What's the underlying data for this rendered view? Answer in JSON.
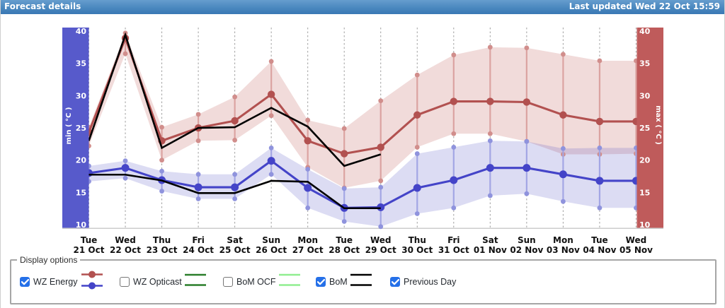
{
  "titlebar": {
    "title": "Forecast details",
    "last_updated": "Last updated Wed 22 Oct 15:59"
  },
  "display_options": {
    "legend_title": "Display options",
    "items": [
      {
        "label": "WZ Energy",
        "checked": true,
        "icon": "red-blue-dot-lines",
        "x": 27,
        "icon_colors": [
          "#b25150",
          "#4444c8"
        ]
      },
      {
        "label": "WZ Opticast",
        "checked": false,
        "icon": "double-lines",
        "x": 168,
        "icon_colors": [
          "#2a7e2a",
          "#2a7e2a"
        ]
      },
      {
        "label": "BoM OCF",
        "checked": false,
        "icon": "double-lines",
        "x": 314,
        "icon_colors": [
          "#90ee90",
          "#90ee90"
        ]
      },
      {
        "label": "BoM",
        "checked": true,
        "icon": "double-lines",
        "x": 445,
        "icon_colors": [
          "#000000",
          "#000000"
        ]
      },
      {
        "label": "Previous Day",
        "checked": true,
        "icon": "none",
        "x": 550,
        "icon_colors": []
      }
    ]
  },
  "chart_data": {
    "type": "line",
    "title": "",
    "xlabel": "",
    "left_axis": {
      "label": "min ( °C )",
      "bar_color": "#575acb",
      "text_color": "#ffffff"
    },
    "right_axis": {
      "label": "max ( °C )",
      "bar_color": "#bf5b5b",
      "text_color": "#ffffff"
    },
    "ylim": [
      10,
      40
    ],
    "yticks": [
      40,
      35,
      30,
      25,
      20,
      15,
      10
    ],
    "grid": "dashed-vertical",
    "categories": [
      {
        "day": "Tue",
        "date": "21 Oct"
      },
      {
        "day": "Wed",
        "date": "22 Oct"
      },
      {
        "day": "Thu",
        "date": "23 Oct"
      },
      {
        "day": "Fri",
        "date": "24 Oct"
      },
      {
        "day": "Sat",
        "date": "25 Oct"
      },
      {
        "day": "Sun",
        "date": "26 Oct"
      },
      {
        "day": "Mon",
        "date": "27 Oct"
      },
      {
        "day": "Tue",
        "date": "28 Oct"
      },
      {
        "day": "Wed",
        "date": "29 Oct"
      },
      {
        "day": "Thu",
        "date": "30 Oct"
      },
      {
        "day": "Fri",
        "date": "31 Oct"
      },
      {
        "day": "Sat",
        "date": "01 Nov"
      },
      {
        "day": "Sun",
        "date": "02 Nov"
      },
      {
        "day": "Mon",
        "date": "03 Nov"
      },
      {
        "day": "Tue",
        "date": "04 Nov"
      },
      {
        "day": "Wed",
        "date": "05 Nov"
      }
    ],
    "series": [
      {
        "name": "WZ Energy max",
        "color": "#b25150",
        "values": [
          24.3,
          38.9,
          23.0,
          25.0,
          26.1,
          30.2,
          23.0,
          21.0,
          22.0,
          27.0,
          29.1,
          29.1,
          29.0,
          27.0,
          26.0,
          26.0
        ],
        "band_high": [
          25.1,
          39.7,
          25.1,
          27.1,
          29.8,
          35.3,
          26.2,
          24.9,
          29.2,
          33.2,
          36.3,
          37.5,
          37.4,
          36.4,
          35.4,
          35.4
        ],
        "band_low": [
          22.2,
          36.5,
          20.0,
          23.0,
          23.1,
          26.9,
          18.9,
          15.7,
          16.8,
          22.0,
          24.1,
          24.1,
          22.9,
          20.9,
          20.9,
          21.0
        ]
      },
      {
        "name": "WZ Energy min",
        "color": "#4444c8",
        "values": [
          18.0,
          18.8,
          16.9,
          15.8,
          15.8,
          19.9,
          15.7,
          12.6,
          12.7,
          15.7,
          16.9,
          18.8,
          18.8,
          17.8,
          16.8,
          16.8
        ],
        "band_high": [
          19.1,
          19.9,
          18.3,
          17.8,
          17.8,
          21.9,
          18.6,
          15.6,
          15.8,
          21.0,
          22.0,
          23.0,
          22.9,
          21.8,
          21.9,
          21.9
        ],
        "band_low": [
          16.7,
          17.2,
          15.2,
          14.0,
          14.0,
          17.8,
          12.6,
          10.5,
          9.7,
          11.7,
          12.6,
          14.5,
          14.8,
          13.6,
          12.6,
          12.6
        ]
      },
      {
        "name": "BoM max",
        "color": "#000000",
        "values": [
          23.0,
          39.4,
          21.9,
          25.0,
          25.1,
          28.1,
          25.2,
          19.1,
          20.9
        ]
      },
      {
        "name": "BoM min",
        "color": "#000000",
        "values": [
          17.75,
          17.75,
          16.85,
          14.9,
          14.9,
          16.8,
          16.65,
          12.55,
          12.55
        ]
      }
    ]
  }
}
